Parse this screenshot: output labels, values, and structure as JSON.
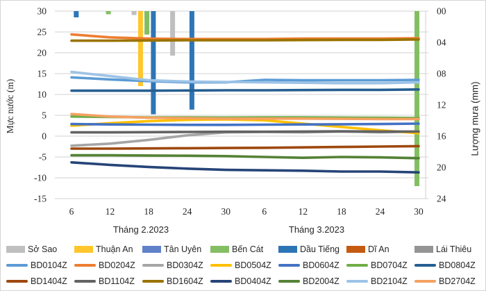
{
  "chart_data": {
    "type": "combo-line-bar",
    "left_axis": {
      "label": "Mực nước (m)",
      "min": -15,
      "max": 30,
      "step": 5
    },
    "right_axis": {
      "label": "Lượng mưa (mm)",
      "min": 0,
      "max": 24,
      "inverted": true,
      "tick_labels": [
        "00",
        "04",
        "08",
        "12",
        "16",
        "20",
        "24"
      ]
    },
    "x_axis": {
      "tick_days": [
        6,
        12,
        18,
        24,
        30
      ],
      "groups": [
        {
          "label": "Tháng 2.2023"
        },
        {
          "label": "Tháng 3.2023"
        }
      ]
    },
    "grid_color": "#d9d9d9",
    "line_x_days": [
      6,
      12,
      18,
      24,
      30,
      36,
      42,
      48,
      54,
      60
    ],
    "line_series": [
      {
        "name": "BD0104Z",
        "color": "#5b9bd5",
        "values": [
          14.1,
          13.6,
          13.2,
          12.9,
          12.9,
          13.5,
          13.4,
          13.4,
          13.4,
          13.5
        ]
      },
      {
        "name": "BD0204Z",
        "color": "#ed7d31",
        "values": [
          24.4,
          23.7,
          23.4,
          23.3,
          23.3,
          23.3,
          23.4,
          23.4,
          23.4,
          23.5
        ]
      },
      {
        "name": "BD0304Z",
        "color": "#a5a5a5",
        "values": [
          -2.3,
          -1.8,
          -0.9,
          0.2,
          0.9,
          1.0,
          0.9,
          1.1,
          0.9,
          1.1
        ]
      },
      {
        "name": "BD0504Z",
        "color": "#ffc000",
        "values": [
          2.5,
          3.1,
          3.6,
          3.9,
          4.0,
          3.8,
          3.0,
          2.2,
          1.4,
          0.7
        ]
      },
      {
        "name": "BD0604Z",
        "color": "#4472c4",
        "values": [
          2.9,
          2.8,
          2.75,
          2.7,
          2.7,
          2.75,
          2.8,
          2.85,
          2.9,
          3.0
        ]
      },
      {
        "name": "BD0704Z",
        "color": "#70ad47",
        "values": [
          4.7,
          4.6,
          4.5,
          4.5,
          4.45,
          4.5,
          4.5,
          4.45,
          4.4,
          4.35
        ]
      },
      {
        "name": "BD0804Z",
        "color": "#255e91",
        "values": [
          10.9,
          10.9,
          10.9,
          10.95,
          11.0,
          11.0,
          11.05,
          11.1,
          11.1,
          11.2
        ]
      },
      {
        "name": "BD1404Z",
        "color": "#9e480e",
        "values": [
          -3.0,
          -3.0,
          -2.95,
          -2.9,
          -2.85,
          -2.8,
          -2.7,
          -2.6,
          -2.5,
          -2.4
        ]
      },
      {
        "name": "BD1104Z",
        "color": "#636363",
        "values": [
          0.9,
          0.9,
          0.95,
          1.0,
          1.05,
          1.05,
          1.1,
          1.15,
          1.1,
          1.1
        ]
      },
      {
        "name": "BD1604Z",
        "color": "#997300",
        "values": [
          22.9,
          22.9,
          22.95,
          23.0,
          23.0,
          23.0,
          23.05,
          23.1,
          23.1,
          23.2
        ]
      },
      {
        "name": "BD0404Z",
        "color": "#264478",
        "values": [
          -6.3,
          -6.9,
          -7.4,
          -7.8,
          -8.1,
          -8.2,
          -8.3,
          -8.5,
          -8.5,
          -8.7
        ]
      },
      {
        "name": "BD2004Z",
        "color": "#548235",
        "values": [
          -4.6,
          -4.6,
          -4.65,
          -4.7,
          -4.8,
          -5.0,
          -5.2,
          -5.0,
          -5.1,
          -5.3
        ]
      },
      {
        "name": "BD2104Z",
        "color": "#9dc3e6",
        "values": [
          15.4,
          14.4,
          13.4,
          13.1,
          13.0,
          12.9,
          12.8,
          12.7,
          12.7,
          12.9
        ]
      },
      {
        "name": "BD2704Z",
        "color": "#f4a163",
        "values": [
          5.3,
          4.7,
          4.4,
          4.3,
          4.2,
          4.2,
          4.2,
          4.15,
          4.1,
          4.1
        ]
      }
    ],
    "bar_series": [
      {
        "name": "Sở Sao",
        "color": "#bfbfbf"
      },
      {
        "name": "Thuận An",
        "color": "#ffc72c"
      },
      {
        "name": "Tân Uyên",
        "color": "#5f82c8"
      },
      {
        "name": "Bến Cát",
        "color": "#84be63"
      },
      {
        "name": "Dầu Tiếng",
        "color": "#2e75b6"
      },
      {
        "name": "Dĩ An",
        "color": "#c55a11"
      },
      {
        "name": "Lái Thiêu",
        "color": "#949494"
      }
    ],
    "bars": [
      {
        "series": "Dầu Tiếng",
        "month": 2,
        "day": 7,
        "mm": 0.8
      },
      {
        "series": "Bến Cát",
        "month": 2,
        "day": 12,
        "mm": 0.4
      },
      {
        "series": "Sở Sao",
        "month": 2,
        "day": 16,
        "mm": 0.5
      },
      {
        "series": "Thuận An",
        "month": 2,
        "day": 17,
        "mm": 9.6
      },
      {
        "series": "Tân Uyên",
        "month": 2,
        "day": 18,
        "mm": 1.0
      },
      {
        "series": "Bến Cát",
        "month": 2,
        "day": 18,
        "mm": 3.0
      },
      {
        "series": "Dầu Tiếng",
        "month": 2,
        "day": 19,
        "mm": 13.2
      },
      {
        "series": "Sở Sao",
        "month": 2,
        "day": 22,
        "mm": 5.7
      },
      {
        "series": "Dầu Tiếng",
        "month": 2,
        "day": 25,
        "mm": 12.6
      },
      {
        "series": "Bến Cát",
        "month": 3,
        "day": 30,
        "mm": 22.4
      }
    ]
  }
}
